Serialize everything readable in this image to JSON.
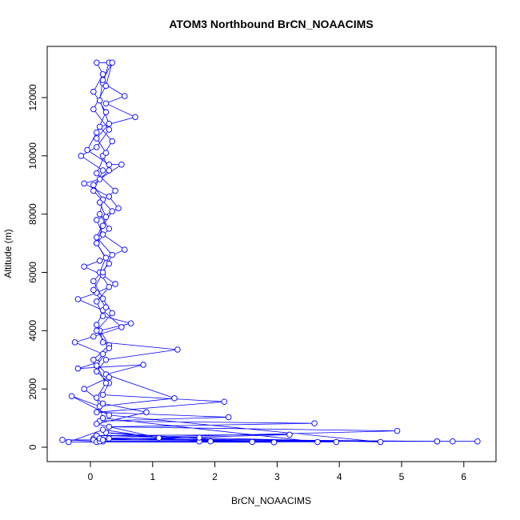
{
  "chart_data": {
    "type": "line",
    "title": "ATOM3 Northbound BrCN_NOAACIMS",
    "x_label": "BrCN_NOAACIMS",
    "y_label": "Altitude (m)",
    "color": "#0000ff",
    "markers": "open-circle",
    "x": [
      0.1,
      6.22,
      5.82,
      0.2,
      5.57,
      0.05,
      4.93,
      0.3,
      3.6,
      0.15,
      2.22,
      0.1,
      2.15,
      0.2,
      0.3,
      0.1,
      0.25,
      1.4,
      0.2,
      0.15,
      0.65,
      0.2,
      0.1,
      0.3,
      0.15,
      0.25,
      0.1,
      0.3,
      0.15,
      0.2,
      0.05,
      0.3,
      0.2,
      0.35,
      0.15,
      0.72,
      0.25,
      0.55,
      0.2,
      0.3,
      0.1,
      0.2,
      0.05,
      0.25,
      0.1,
      -0.05,
      0.3,
      0.5,
      0.15,
      -0.1,
      0.3,
      0.45,
      0.1,
      0.2,
      0.55,
      0.15,
      -0.1,
      0.2,
      0.4,
      0.1,
      -0.2,
      0.2,
      0.5,
      0.05,
      -0.25,
      0.2,
      0.1,
      -0.2,
      0.85,
      0.25,
      1.35,
      0.15,
      -0.3,
      0.3,
      4.66,
      0.1,
      3.2,
      0.05,
      -0.45,
      0.2,
      3.95,
      0.3,
      2.95,
      0.1,
      1.75,
      0.25,
      2.6,
      0.15,
      1.93,
      -0.35,
      0.2,
      1.1,
      0.1,
      0.9,
      0.2,
      -0.1,
      0.3,
      0.05,
      0.3,
      0.1,
      0.25,
      0.05,
      0.2,
      0.35,
      0.1,
      0.25,
      0.15,
      0.4,
      0.1,
      0.25,
      0.1,
      0.3,
      0.15,
      0.2,
      0.35,
      0.25,
      0.05,
      0.3,
      0.1,
      -0.15,
      0.2,
      0.05,
      0.35,
      0.2,
      0.1,
      0.3,
      0.05,
      0.2,
      0.35,
      0.1,
      0.3,
      0.1,
      0.25,
      0.1,
      0.2,
      3.65,
      0.15,
      5.57,
      0.2,
      1.75
    ],
    "values": [
      200,
      200,
      200,
      250,
      200,
      300,
      560,
      700,
      820,
      900,
      1030,
      1200,
      1560,
      1800,
      2200,
      2600,
      3000,
      3350,
      3600,
      4000,
      4250,
      4500,
      5000,
      5500,
      6000,
      6500,
      7000,
      7500,
      8000,
      8500,
      9000,
      9500,
      10000,
      10500,
      11000,
      11330,
      11800,
      12050,
      12500,
      13200,
      13200,
      12800,
      12200,
      11500,
      10800,
      10200,
      9700,
      9700,
      9200,
      9050,
      8600,
      8200,
      7800,
      7300,
      6780,
      6400,
      6200,
      5900,
      5600,
      5300,
      5080,
      4700,
      4120,
      3800,
      3600,
      3200,
      2900,
      2700,
      2830,
      2500,
      1680,
      1400,
      1750,
      1100,
      180,
      400,
      430,
      250,
      250,
      200,
      180,
      300,
      170,
      180,
      200,
      500,
      180,
      200,
      200,
      180,
      600,
      320,
      800,
      1200,
      1500,
      2000,
      2400,
      3000,
      3500,
      4200,
      4800,
      5400,
      6000,
      6600,
      7200,
      7900,
      8400,
      8800,
      9400,
      10100,
      10600,
      11100,
      11900,
      12600,
      13200,
      12400,
      11600,
      10900,
      10300,
      10000,
      9500,
      8800,
      8100,
      7600,
      7000,
      6300,
      5700,
      5100,
      4600,
      4000,
      3400,
      2800,
      2200,
      1700,
      1000,
      180,
      300,
      200,
      250,
      330
    ],
    "xlim": [
      -0.694,
      6.517
    ],
    "ylim": [
      -494,
      13756
    ],
    "xticks": [
      0,
      1,
      2,
      3,
      4,
      5,
      6
    ],
    "yticks": [
      0,
      2000,
      4000,
      6000,
      8000,
      10000,
      12000
    ]
  }
}
